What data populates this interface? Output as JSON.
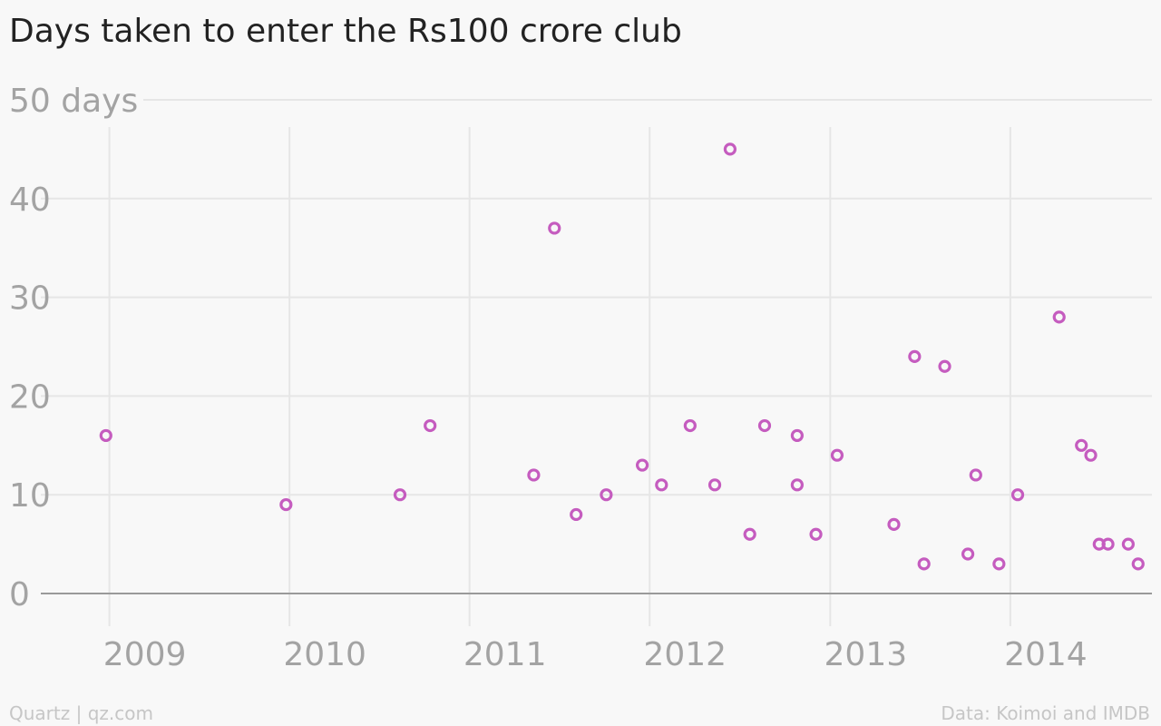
{
  "footer": {
    "source_left": "Quartz | qz.com",
    "source_right": "Data: Koimoi and IMDB"
  },
  "colors": {
    "point": "#c55cbf",
    "grid": "#e6e6e6",
    "axis": "#9a9a9a",
    "tick_text": "#a3a3a3",
    "title": "#222222",
    "background": "#f8f8f8"
  },
  "chart_data": {
    "type": "scatter",
    "title": "Days taken to enter the Rs100 crore club",
    "xlabel": "",
    "ylabel": "",
    "y_unit": "days",
    "xlim": [
      "2008-08-15",
      "2014-10-15"
    ],
    "ylim": [
      0,
      50
    ],
    "x_ticks": [
      {
        "date": "2009-01-01",
        "label": "2009"
      },
      {
        "date": "2010-01-01",
        "label": "2010"
      },
      {
        "date": "2011-01-01",
        "label": "2011"
      },
      {
        "date": "2012-01-01",
        "label": "2012"
      },
      {
        "date": "2013-01-01",
        "label": "2013"
      },
      {
        "date": "2014-01-01",
        "label": "2014"
      }
    ],
    "y_ticks": [
      {
        "value": 0,
        "label": "0"
      },
      {
        "value": 10,
        "label": "10"
      },
      {
        "value": 20,
        "label": "20"
      },
      {
        "value": 30,
        "label": "30"
      },
      {
        "value": 40,
        "label": "40"
      },
      {
        "value": 50,
        "label": "50 days"
      }
    ],
    "grid": true,
    "points": [
      {
        "x": "2008-12-25",
        "y": 16
      },
      {
        "x": "2009-12-25",
        "y": 9
      },
      {
        "x": "2010-08-13",
        "y": 10
      },
      {
        "x": "2010-10-13",
        "y": 17
      },
      {
        "x": "2011-05-11",
        "y": 12
      },
      {
        "x": "2011-06-22",
        "y": 37
      },
      {
        "x": "2011-08-05",
        "y": 8
      },
      {
        "x": "2011-10-05",
        "y": 10
      },
      {
        "x": "2011-12-17",
        "y": 13
      },
      {
        "x": "2012-01-25",
        "y": 11
      },
      {
        "x": "2012-03-23",
        "y": 17
      },
      {
        "x": "2012-05-12",
        "y": 11
      },
      {
        "x": "2012-06-12",
        "y": 45
      },
      {
        "x": "2012-07-22",
        "y": 6
      },
      {
        "x": "2012-08-21",
        "y": 17
      },
      {
        "x": "2012-10-26",
        "y": 11
      },
      {
        "x": "2012-10-26",
        "y": 16
      },
      {
        "x": "2012-12-03",
        "y": 6
      },
      {
        "x": "2013-01-15",
        "y": 14
      },
      {
        "x": "2013-05-10",
        "y": 7
      },
      {
        "x": "2013-06-21",
        "y": 24
      },
      {
        "x": "2013-07-10",
        "y": 3
      },
      {
        "x": "2013-08-21",
        "y": 23
      },
      {
        "x": "2013-10-07",
        "y": 4
      },
      {
        "x": "2013-10-23",
        "y": 12
      },
      {
        "x": "2013-12-09",
        "y": 3
      },
      {
        "x": "2014-01-16",
        "y": 10
      },
      {
        "x": "2014-04-10",
        "y": 28
      },
      {
        "x": "2014-05-25",
        "y": 15
      },
      {
        "x": "2014-06-13",
        "y": 14
      },
      {
        "x": "2014-06-30",
        "y": 5
      },
      {
        "x": "2014-07-18",
        "y": 5
      },
      {
        "x": "2014-08-28",
        "y": 5
      },
      {
        "x": "2014-09-17",
        "y": 3
      }
    ]
  }
}
